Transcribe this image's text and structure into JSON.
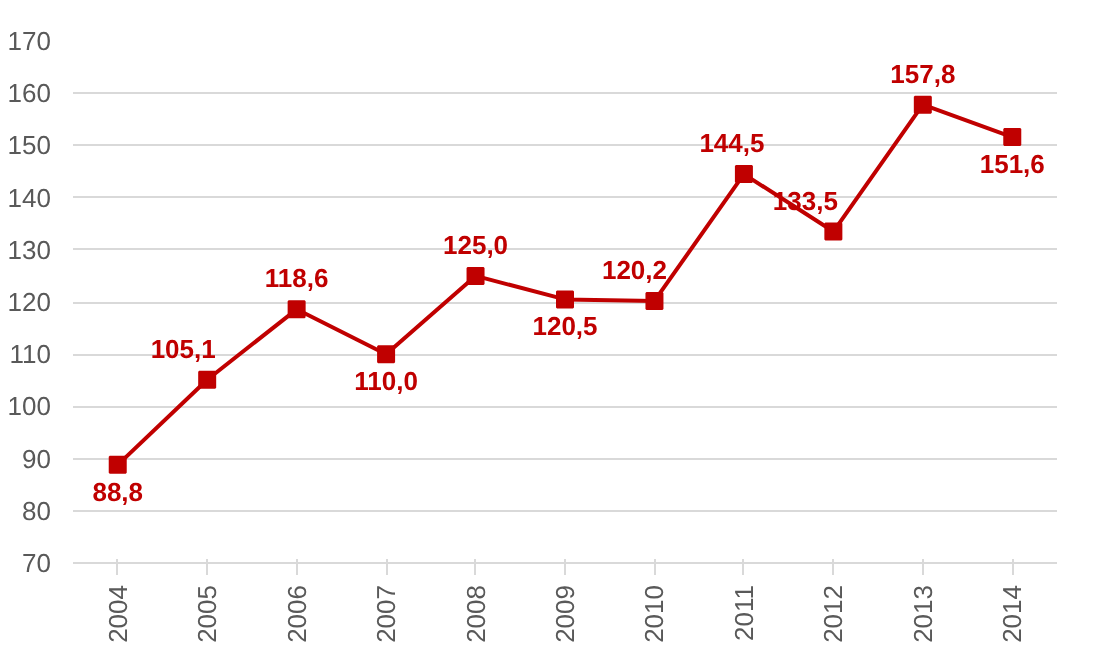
{
  "chart_data": {
    "type": "line",
    "categories": [
      "2004",
      "2005",
      "2006",
      "2007",
      "2008",
      "2009",
      "2010",
      "2011",
      "2012",
      "2013",
      "2014"
    ],
    "series": [
      {
        "color": "#c00000",
        "values": [
          88.8,
          105.1,
          118.6,
          110.0,
          125.0,
          120.5,
          120.2,
          144.5,
          133.5,
          157.8,
          151.6
        ],
        "value_labels": [
          "88,8",
          "105,1",
          "118,6",
          "110,0",
          "125,0",
          "120,5",
          "120,2",
          "144,5",
          "133,5",
          "157,8",
          "151,6"
        ]
      }
    ],
    "ylim": [
      70,
      170
    ],
    "yticks": [
      70,
      80,
      90,
      100,
      110,
      120,
      130,
      140,
      150,
      160,
      170
    ],
    "grid": "y",
    "marker": "square",
    "line_style": "solid"
  }
}
